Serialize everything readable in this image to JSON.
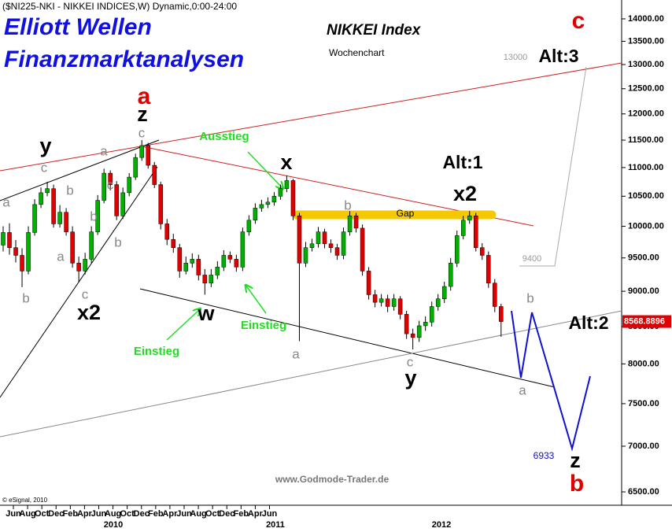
{
  "chart_data": {
    "type": "candlestick",
    "title": "($NI225-NKI - NIKKEI INDICES,W) Dynamic,0:00-24:00",
    "scale": "log",
    "grid": false,
    "colors": {
      "up": "#00b000",
      "down": "#e00000",
      "wick": "#000000",
      "last_price": "#e00000"
    },
    "categories": [
      null,
      null,
      null,
      null,
      null,
      null,
      null,
      null,
      null,
      null,
      null,
      null,
      null,
      null,
      null,
      null,
      null,
      null,
      null,
      null,
      null,
      null,
      null,
      null,
      null,
      null,
      null,
      null,
      null,
      null,
      null,
      null,
      null,
      null,
      null,
      null,
      null,
      null,
      null,
      null,
      null,
      null,
      null,
      null,
      null,
      null,
      null,
      null,
      null,
      null,
      null,
      null,
      null,
      null,
      null,
      null,
      null,
      null,
      null,
      null,
      null,
      null,
      null,
      null,
      null,
      null,
      null,
      null,
      null,
      null,
      null,
      null,
      null,
      null,
      null,
      null,
      null,
      null,
      null,
      null
    ],
    "open": [
      9700,
      9900,
      9660,
      9540,
      9300,
      9900,
      10360,
      10560,
      10630,
      10040,
      10230,
      9910,
      9420,
      9300,
      9480,
      9910,
      10430,
      10900,
      10700,
      10170,
      10560,
      10830,
      11180,
      11400,
      11040,
      10700,
      10040,
      9790,
      9660,
      9300,
      9420,
      9480,
      9240,
      9120,
      9240,
      9360,
      9540,
      9480,
      9360,
      9910,
      10100,
      10300,
      10360,
      10400,
      10500,
      10630,
      10770,
      10170,
      9420,
      9660,
      9720,
      9910,
      9720,
      9660,
      9540,
      9910,
      10170,
      9970,
      9300,
      8950,
      8840,
      8890,
      8780,
      8890,
      8670,
      8400,
      8350,
      8510,
      8560,
      8780,
      8890,
      9070,
      9420,
      9850,
      10100,
      10170,
      9660,
      9540,
      9120,
      8780
    ],
    "high": [
      10000,
      10050,
      9780,
      9650,
      10000,
      10450,
      10650,
      10750,
      10700,
      10350,
      10300,
      10000,
      9520,
      9580,
      10000,
      10520,
      10980,
      10950,
      10760,
      10650,
      10900,
      11250,
      11500,
      11450,
      11100,
      10750,
      10120,
      9880,
      9720,
      9520,
      9570,
      9550,
      9330,
      9330,
      9450,
      9620,
      9600,
      9550,
      9980,
      10180,
      10380,
      10440,
      10480,
      10570,
      10700,
      10860,
      10800,
      10220,
      9750,
      9800,
      9990,
      9960,
      9790,
      9720,
      9980,
      10250,
      10220,
      10030,
      9360,
      9020,
      8960,
      8950,
      8960,
      8930,
      8720,
      8470,
      8580,
      8640,
      8850,
      8960,
      9140,
      9500,
      9930,
      10170,
      10250,
      10220,
      9730,
      9600,
      9180,
      8820
    ],
    "low": [
      9600,
      9550,
      9430,
      9060,
      9250,
      9850,
      10300,
      10500,
      9980,
      9980,
      9850,
      9350,
      9130,
      9250,
      9420,
      9860,
      10380,
      10600,
      10100,
      10120,
      10500,
      10780,
      11120,
      10980,
      10640,
      9950,
      9700,
      9580,
      9200,
      9250,
      9350,
      9160,
      8950,
      9060,
      9180,
      9300,
      9420,
      9290,
      9300,
      9850,
      10040,
      10240,
      10300,
      10340,
      10440,
      10570,
      10100,
      8300,
      9360,
      9600,
      9660,
      9650,
      9580,
      9470,
      9480,
      9850,
      9900,
      9230,
      8880,
      8770,
      8780,
      8700,
      8720,
      8600,
      8330,
      8190,
      8290,
      8440,
      8500,
      8720,
      8830,
      9010,
      9360,
      9790,
      10040,
      9600,
      9470,
      9050,
      8700,
      8360
    ],
    "close": [
      9900,
      9660,
      9540,
      9300,
      9900,
      10360,
      10560,
      10630,
      10040,
      10230,
      9910,
      9420,
      9300,
      9480,
      9910,
      10430,
      10900,
      10700,
      10170,
      10560,
      10830,
      11180,
      11400,
      11040,
      10700,
      10040,
      9790,
      9660,
      9300,
      9420,
      9480,
      9240,
      9120,
      9240,
      9360,
      9540,
      9480,
      9360,
      9910,
      10100,
      10300,
      10360,
      10400,
      10500,
      10630,
      10770,
      10170,
      9420,
      9660,
      9720,
      9910,
      9720,
      9660,
      9540,
      9910,
      10170,
      9970,
      9300,
      8950,
      8840,
      8890,
      8780,
      8890,
      8670,
      8400,
      8350,
      8510,
      8560,
      8780,
      8890,
      9070,
      9420,
      9850,
      10100,
      10170,
      9660,
      9540,
      9120,
      8780,
      8568.8896
    ],
    "ylim": [
      6377,
      14435
    ],
    "yticks": [
      {
        "value": 6500,
        "label": "6500.00"
      },
      {
        "value": 7000,
        "label": "7000.00"
      },
      {
        "value": 7500,
        "label": "7500.00"
      },
      {
        "value": 8000,
        "label": "8000.00"
      },
      {
        "value": 8500,
        "label": "8500.00"
      },
      {
        "value": 9000,
        "label": "9000.00"
      },
      {
        "value": 9500,
        "label": "9500.00"
      },
      {
        "value": 10000,
        "label": "10000.00"
      },
      {
        "value": 10500,
        "label": "10500.00"
      },
      {
        "value": 11000,
        "label": "11000.00"
      },
      {
        "value": 11500,
        "label": "11500.00"
      },
      {
        "value": 12000,
        "label": "12000.00"
      },
      {
        "value": 12500,
        "label": "12500.00"
      },
      {
        "value": 13000,
        "label": "13000.00"
      },
      {
        "value": 13500,
        "label": "13500.00"
      },
      {
        "value": 14000,
        "label": "14000.00"
      }
    ],
    "xtick_labels": [
      "Jun",
      "Aug",
      "Oct",
      "Dec",
      "Feb",
      "Apr",
      "Jun",
      "Aug",
      "Oct",
      "Dec",
      "Feb",
      "Apr",
      "Jun",
      "Aug",
      "Oct",
      "Dec",
      "Feb",
      "Apr",
      "Jun"
    ],
    "year_labels": [
      "2010",
      "2011",
      "2012"
    ],
    "annotations": [
      "Elliott Wellen",
      "Finanzmarktanalysen",
      "NIKKEI Index",
      "Wochenchart",
      "c",
      "13000",
      "Alt:3",
      "a",
      "z",
      "c",
      "Ausstieg",
      "y",
      "c",
      "a",
      "x",
      "Alt:1",
      "x2",
      "a",
      "b",
      "c",
      "b",
      "b",
      "Gap",
      "a",
      "b",
      "9400",
      "b",
      "c",
      "x2",
      "w",
      "Einstieg",
      "b",
      "Alt:2",
      "Einstieg",
      "a",
      "c",
      "y",
      "a",
      "6933",
      "z",
      "b",
      "www.Godmode-Trader.de",
      "© eSignal, 2010"
    ]
  }
}
